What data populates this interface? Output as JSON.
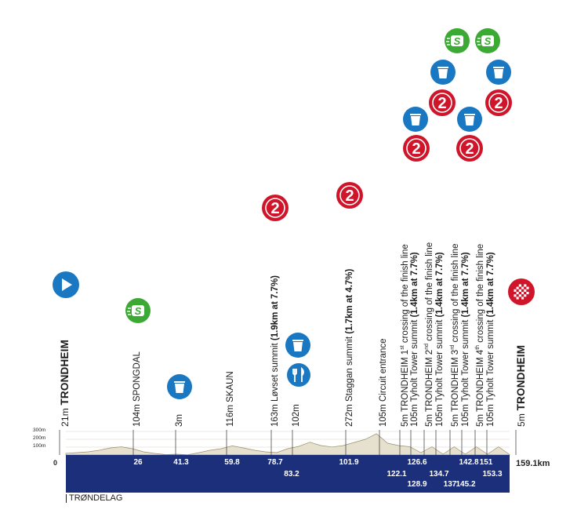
{
  "colors": {
    "bar": "#1c2f7a",
    "terrain": "#e6e0cf",
    "terrain_line": "#9b8f6c",
    "kom_red": "#d0152a",
    "feed_blue": "#1a78c2",
    "sprint_green": "#3da935",
    "start_blue": "#1a78c2"
  },
  "profile": {
    "axis_labels": [
      "300m",
      "200m",
      "100m"
    ],
    "zero_label": "0",
    "total_distance": "159.1km",
    "region": "TRØNDELAG",
    "altitudes_m": [
      21,
      30,
      40,
      60,
      90,
      104,
      80,
      40,
      20,
      5,
      10,
      3,
      30,
      60,
      80,
      116,
      90,
      60,
      40,
      30,
      80,
      110,
      163,
      120,
      102,
      120,
      160,
      200,
      272,
      150,
      120,
      105,
      30,
      105,
      10,
      105,
      10,
      105,
      10,
      105,
      5
    ]
  },
  "km_markers_top": [
    "26",
    "41.3",
    "59.8",
    "78.7",
    "101.9",
    "126.6",
    "142.8",
    "151"
  ],
  "km_markers_bottom": [
    "83.2",
    "122.1",
    "128.9",
    "134.7",
    "137",
    "145.2",
    "153.3"
  ],
  "waypoints": [
    {
      "name_plain": "21m ",
      "name_bold": "TRONDHEIM",
      "icon": "start-play-icon"
    },
    {
      "name_plain": "104m SPONGDAL",
      "icon": "sprint-icon"
    },
    {
      "name_plain": "3m",
      "icon": "feed-zone-icon"
    },
    {
      "name_plain": "116m SKAUN"
    },
    {
      "name_plain": "163m Løvset summit ",
      "name_bold": "(1.9km at 7.7%)",
      "icon": "kom-cat2-icon"
    },
    {
      "name_plain": "102m",
      "icons": [
        "feed-zone-icon",
        "food-icon"
      ]
    },
    {
      "name_plain": "272m Staggan summit ",
      "name_bold": "(1.7km at 4.7%)",
      "icon": "kom-cat2-icon"
    },
    {
      "name_plain": "105m Circuit entrance"
    },
    {
      "line1": "5m TRONDHEIM 1",
      "sup": "st",
      "line1_rest": " crossing of the finish line",
      "line2_plain": "105m Tyholt Tower summit ",
      "line2_bold": "(1.4km at 7.7%)"
    },
    {
      "line1": "5m TRONDHEIM 2",
      "sup": "nd",
      "line1_rest": " crossing of the finish line",
      "line2_plain": "105m Tyholt Tower summit ",
      "line2_bold": "(1.4km at 7.7%)"
    },
    {
      "line1": "5m TRONDHEIM 3",
      "sup": "rd",
      "line1_rest": " crossing of the finish line",
      "line2_plain": "105m Tyholt Tower summit ",
      "line2_bold": "(1.4km at 7.7%)"
    },
    {
      "line1": "5m TRONDHEIM 4",
      "sup": "th",
      "line1_rest": " crossing of the finish line",
      "line2_plain": "105m Tyholt Tower summit ",
      "line2_bold": "(1.4km at 7.7%)"
    },
    {
      "name_plain": "5m ",
      "name_bold": "TRONDHEIM",
      "icon": "finish-flag-icon"
    }
  ],
  "icon_text": {
    "kom": "2",
    "sprint": "S"
  }
}
